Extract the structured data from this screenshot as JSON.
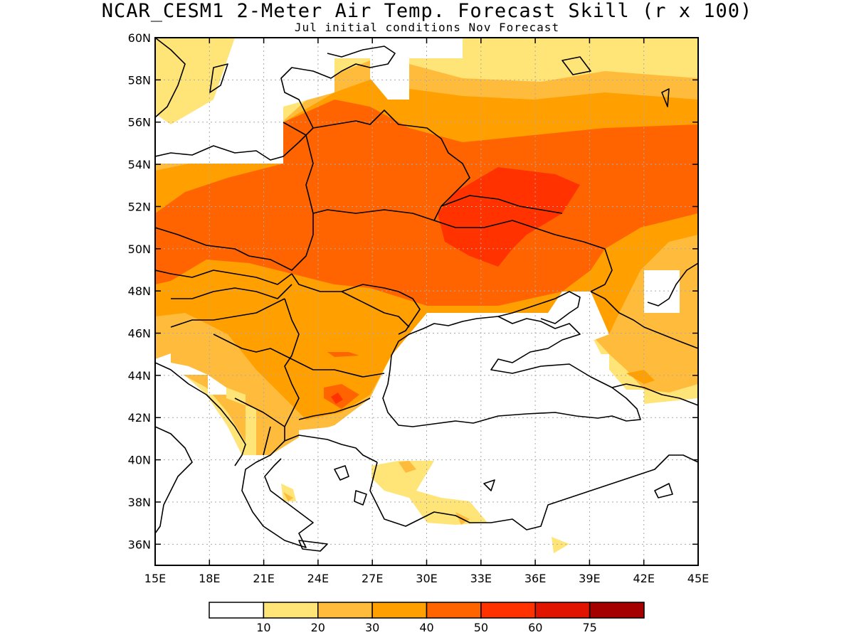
{
  "title": "NCAR_CESM1 2-Meter Air Temp. Forecast Skill (r x 100)",
  "subtitle": "Jul initial conditions  Nov Forecast",
  "map": {
    "lon_range": [
      15,
      45
    ],
    "lat_range": [
      35,
      60
    ],
    "x_ticks": [
      {
        "value": 15,
        "label": "15E"
      },
      {
        "value": 18,
        "label": "18E"
      },
      {
        "value": 21,
        "label": "21E"
      },
      {
        "value": 24,
        "label": "24E"
      },
      {
        "value": 27,
        "label": "27E"
      },
      {
        "value": 30,
        "label": "30E"
      },
      {
        "value": 33,
        "label": "33E"
      },
      {
        "value": 36,
        "label": "36E"
      },
      {
        "value": 39,
        "label": "39E"
      },
      {
        "value": 42,
        "label": "42E"
      },
      {
        "value": 45,
        "label": "45E"
      }
    ],
    "y_ticks": [
      {
        "value": 36,
        "label": "36N"
      },
      {
        "value": 38,
        "label": "38N"
      },
      {
        "value": 40,
        "label": "40N"
      },
      {
        "value": 42,
        "label": "42N"
      },
      {
        "value": 44,
        "label": "44N"
      },
      {
        "value": 46,
        "label": "46N"
      },
      {
        "value": 48,
        "label": "48N"
      },
      {
        "value": 50,
        "label": "50N"
      },
      {
        "value": 52,
        "label": "52N"
      },
      {
        "value": 54,
        "label": "54N"
      },
      {
        "value": 56,
        "label": "56N"
      },
      {
        "value": 58,
        "label": "58N"
      },
      {
        "value": 60,
        "label": "60N"
      }
    ],
    "grid": true
  },
  "colorbar": {
    "colors": [
      "#ffffff",
      "#ffe478",
      "#ffbc3c",
      "#ff9f00",
      "#ff6400",
      "#ff3200",
      "#e11400",
      "#a50000"
    ],
    "labels": [
      "10",
      "20",
      "30",
      "40",
      "50",
      "60",
      "75"
    ]
  }
}
